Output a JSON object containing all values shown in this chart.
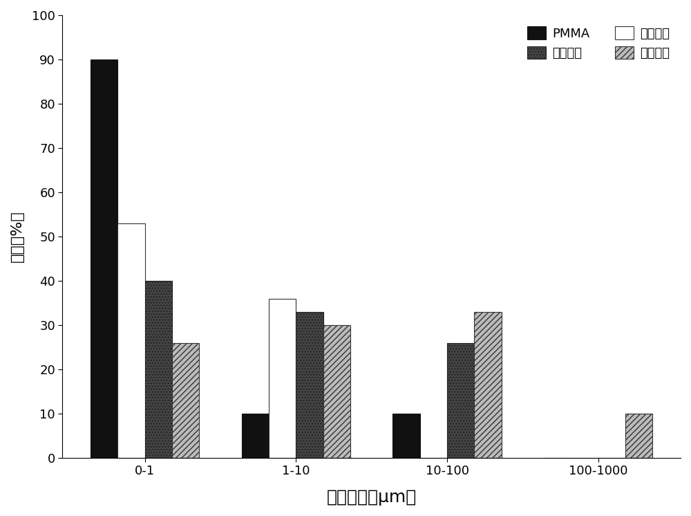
{
  "categories": [
    "0-1",
    "1-10",
    "10-100",
    "100-1000"
  ],
  "series": {
    "PMMA": [
      90,
      10,
      10,
      0
    ],
    "实施例一": [
      40,
      33,
      26,
      0
    ],
    "实施例三": [
      53,
      36,
      0,
      0
    ],
    "实施例五": [
      26,
      30,
      33,
      10
    ]
  },
  "series_order": [
    "PMMA",
    "实施例三",
    "实施例一",
    "实施例五"
  ],
  "legend_order": [
    "PMMA",
    "实施例一",
    "实施例三",
    "实施例五"
  ],
  "ylabel": "占比（%）",
  "xlabel": "孔径尺寸（μm）",
  "ylim": [
    0,
    100
  ],
  "yticks": [
    0,
    10,
    20,
    30,
    40,
    50,
    60,
    70,
    80,
    90,
    100
  ],
  "bar_width": 0.18,
  "background_color": "#ffffff",
  "axis_fontsize": 16,
  "tick_fontsize": 13,
  "legend_fontsize": 13
}
